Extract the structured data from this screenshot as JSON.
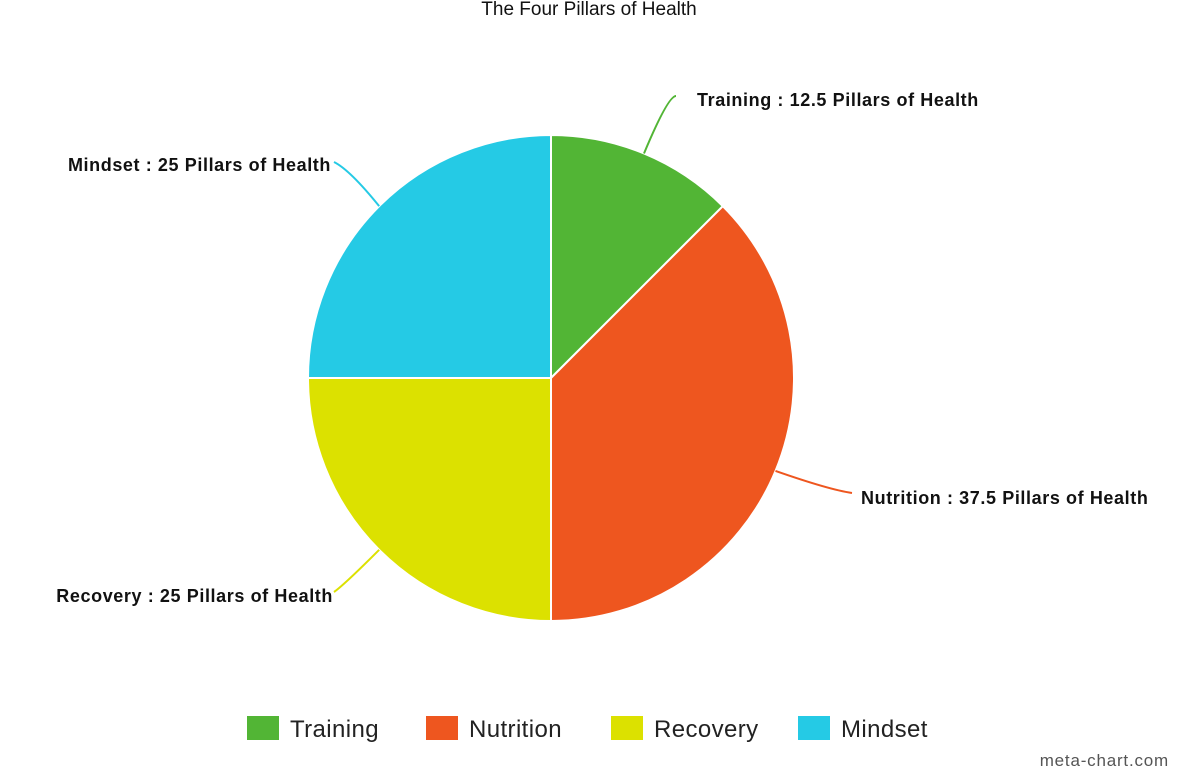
{
  "chart_data": {
    "type": "pie",
    "title": "The Four Pillars of Health",
    "unit": "Pillars of Health",
    "categories": [
      "Training",
      "Nutrition",
      "Recovery",
      "Mindset"
    ],
    "values": [
      12.5,
      37.5,
      25,
      25
    ],
    "colors": [
      "#52b535",
      "#ee561f",
      "#dce100",
      "#25cae5"
    ],
    "slice_labels": [
      "Training : 12.5 Pillars of Health",
      "Nutrition : 37.5 Pillars of Health",
      "Recovery : 25 Pillars of Health",
      "Mindset : 25 Pillars of Health"
    ],
    "legend": {
      "placement": "bottom",
      "entries": [
        "Training",
        "Nutrition",
        "Recovery",
        "Mindset"
      ]
    }
  },
  "watermark": "meta-chart.com"
}
